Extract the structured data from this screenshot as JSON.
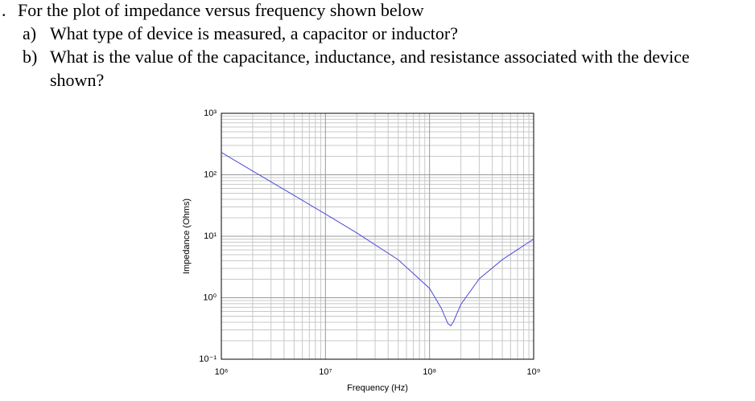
{
  "question": {
    "number": ".",
    "intro": "For the plot of impedance versus frequency shown below",
    "items": [
      {
        "label": "a)",
        "text": "What type of device is measured, a capacitor or inductor?"
      },
      {
        "label": "b)",
        "text": "What is the value of the capacitance, inductance, and resistance associated with the device shown?"
      }
    ]
  },
  "chart_data": {
    "type": "line",
    "xlabel": "Frequency (Hz)",
    "ylabel": "Impedance (Ohms)",
    "x": [
      1000000,
      2000000,
      5000000,
      10000000,
      20000000,
      50000000,
      100000000,
      130000000,
      150000000,
      160000000,
      170000000,
      200000000,
      300000000,
      500000000,
      1000000000
    ],
    "series": [
      {
        "color": "#4a4ad8",
        "values": [
          230.7,
          115.3,
          46.1,
          23.0,
          11.35,
          4.15,
          1.42,
          0.67,
          0.38,
          0.35,
          0.41,
          0.78,
          2.03,
          4.17,
          9.0
        ]
      }
    ],
    "xscale": "log",
    "yscale": "log",
    "xlim": [
      1000000,
      1000000000
    ],
    "ylim": [
      0.1,
      1000
    ],
    "xticks": [
      {
        "value": 1000000,
        "label": "10⁶"
      },
      {
        "value": 10000000,
        "label": "10⁷"
      },
      {
        "value": 100000000,
        "label": "10⁸"
      },
      {
        "value": 1000000000,
        "label": "10⁹"
      }
    ],
    "yticks": [
      {
        "value": 0.1,
        "label": "10⁻¹"
      },
      {
        "value": 1,
        "label": "10⁰"
      },
      {
        "value": 10,
        "label": "10¹"
      },
      {
        "value": 100,
        "label": "10²"
      },
      {
        "value": 1000,
        "label": "10³"
      }
    ],
    "grid": true
  }
}
